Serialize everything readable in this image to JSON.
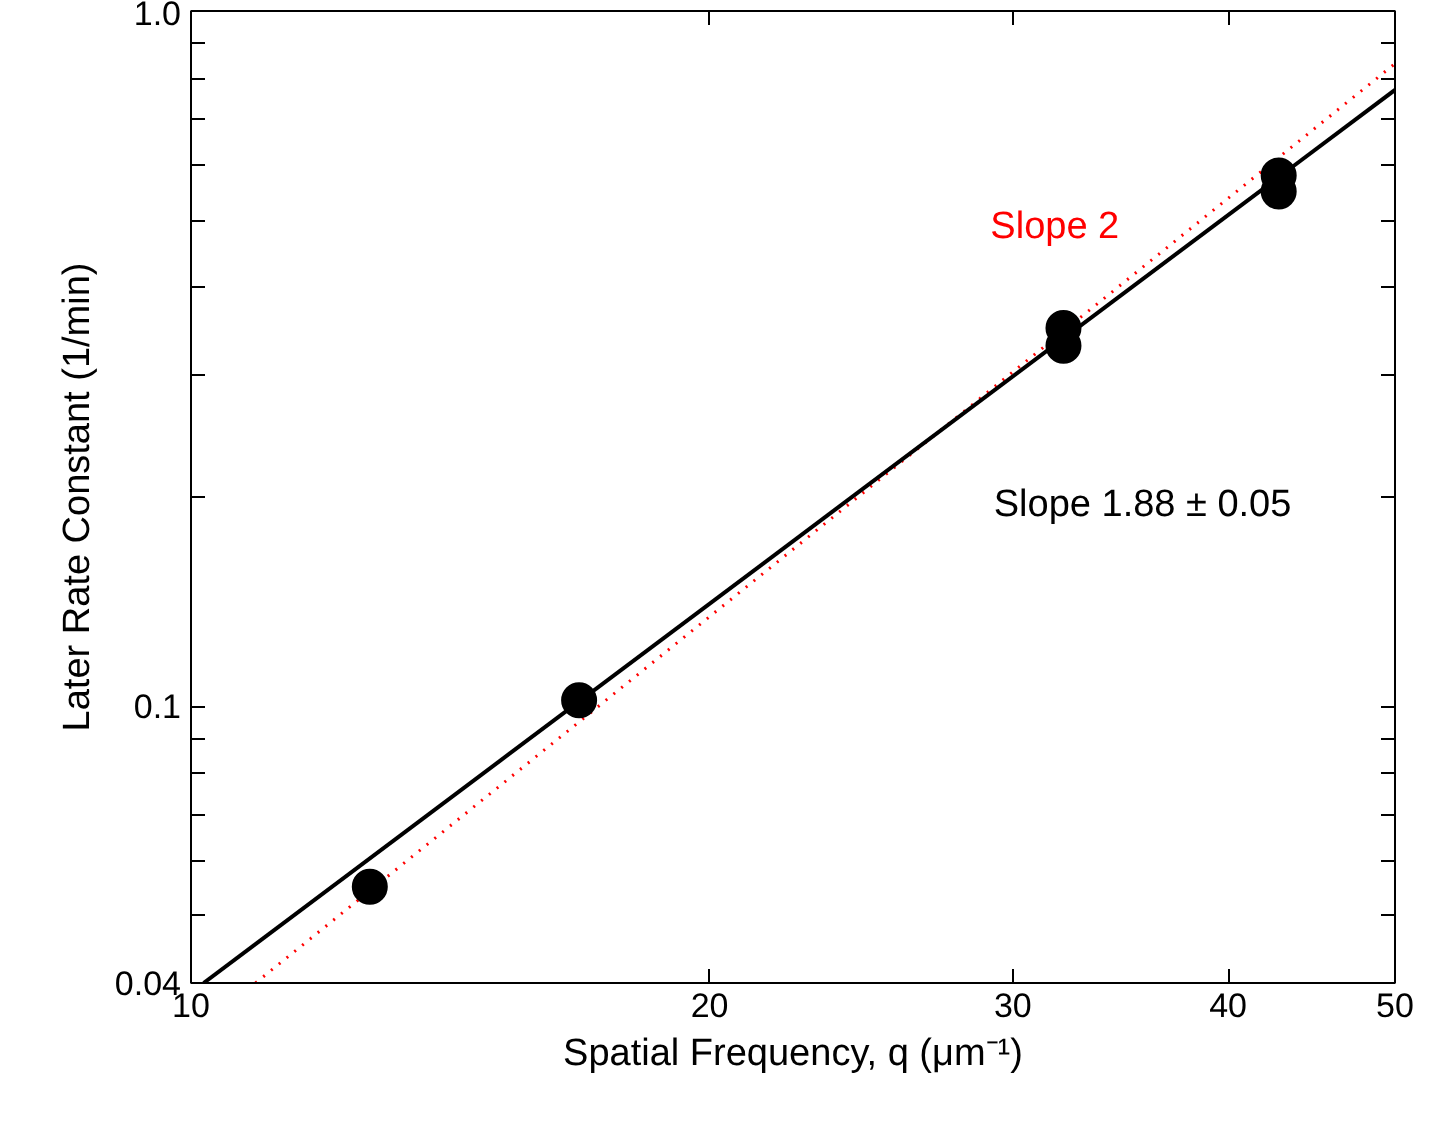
{
  "chart_data": {
    "type": "scatter",
    "xlabel": "Spatial Frequency, q (μm⁻¹)",
    "ylabel": "Later Rate Constant (1/min)",
    "log": "xy",
    "grid": false,
    "xlim": [
      10,
      50
    ],
    "xticks": [
      10,
      20,
      30,
      40,
      50
    ],
    "ylim": [
      0.04,
      1.0
    ],
    "yticks": [
      0.04,
      {
        "value": 0.05,
        "label": null
      },
      {
        "value": 0.06,
        "label": null
      },
      {
        "value": 0.07,
        "label": null
      },
      {
        "value": 0.08,
        "label": null
      },
      {
        "value": 0.09,
        "label": null
      },
      0.1,
      {
        "value": 0.2,
        "label": null
      },
      {
        "value": 0.3,
        "label": null
      },
      {
        "value": 0.4,
        "label": null
      },
      {
        "value": 0.5,
        "label": null
      },
      {
        "value": 0.6,
        "label": null
      },
      {
        "value": 0.7,
        "label": null
      },
      {
        "value": 0.8,
        "label": null
      },
      {
        "value": 0.9,
        "label": null
      },
      {
        "value": 1.0,
        "label": "1.0"
      }
    ],
    "series": [
      {
        "marker": "circle",
        "color": "#000000",
        "x": [
          12.7,
          16.8,
          32.1,
          32.1,
          42.8,
          42.8
        ],
        "values": [
          0.055,
          0.102,
          0.35,
          0.33,
          0.58,
          0.55
        ]
      },
      {
        "name": "Slope 2",
        "type": "line",
        "marker": "none",
        "line_style": "dotted",
        "color": "#ff0000",
        "x": [
          10.9,
          50
        ],
        "values": [
          0.04,
          0.84
        ]
      },
      {
        "name": "Slope 1.88 ± 0.05",
        "type": "line",
        "marker": "none",
        "line_style": "solid",
        "color": "#000000",
        "x": [
          10.17,
          50
        ],
        "values": [
          0.04,
          0.77
        ]
      }
    ]
  }
}
